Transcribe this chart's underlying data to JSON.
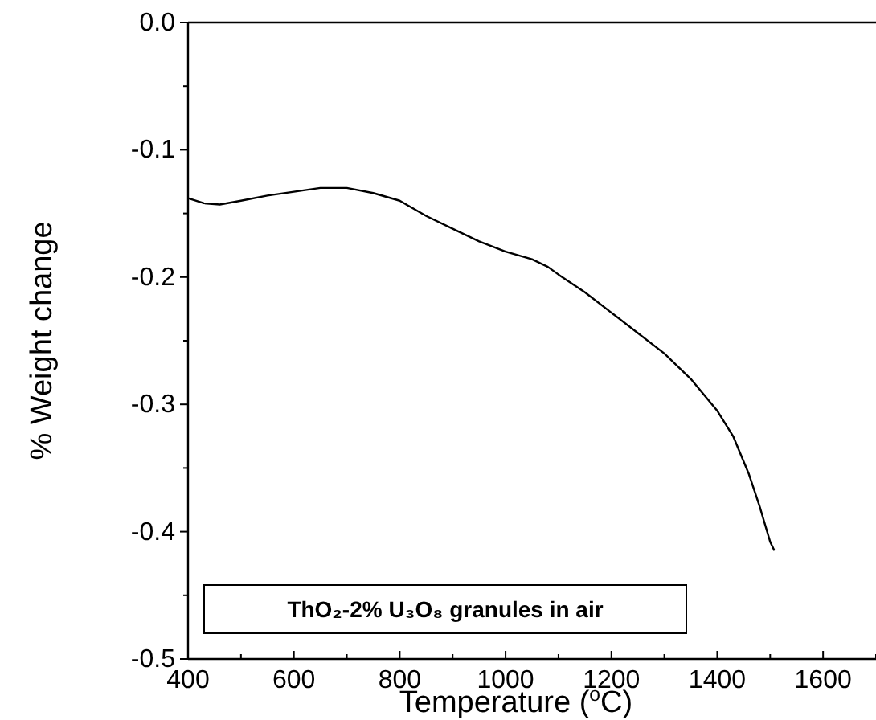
{
  "chart_data": {
    "type": "line",
    "xlabel": "Temperature ($^{o}$C)",
    "ylabel": "% Weight change",
    "x": [
      400,
      430,
      460,
      500,
      550,
      600,
      650,
      700,
      750,
      800,
      850,
      900,
      950,
      1000,
      1050,
      1080,
      1100,
      1150,
      1200,
      1250,
      1300,
      1350,
      1400,
      1430,
      1460,
      1480,
      1500,
      1508
    ],
    "series": [
      {
        "color": "#000000",
        "values": [
          -0.138,
          -0.142,
          -0.143,
          -0.14,
          -0.136,
          -0.133,
          -0.13,
          -0.13,
          -0.134,
          -0.14,
          -0.152,
          -0.162,
          -0.172,
          -0.18,
          -0.186,
          -0.192,
          -0.198,
          -0.212,
          -0.228,
          -0.244,
          -0.26,
          -0.28,
          -0.305,
          -0.325,
          -0.355,
          -0.38,
          -0.408,
          -0.415
        ]
      }
    ],
    "xlim": [
      400,
      1700
    ],
    "xticks": [
      400,
      {
        "value": 500,
        "label": null
      },
      600,
      {
        "value": 700,
        "label": null
      },
      800,
      {
        "value": 900,
        "label": null
      },
      1000,
      {
        "value": 1100,
        "label": null
      },
      1200,
      {
        "value": 1300,
        "label": null
      },
      1400,
      {
        "value": 1500,
        "label": null
      },
      1600,
      {
        "value": 1700,
        "label": null
      }
    ],
    "ylim": [
      -0.5,
      0
    ],
    "yticks": [
      {
        "value": 0,
        "label": "0.0"
      },
      {
        "value": -0.05,
        "label": null
      },
      -0.1,
      {
        "value": -0.15,
        "label": null
      },
      -0.2,
      {
        "value": -0.25,
        "label": null
      },
      -0.3,
      {
        "value": -0.35,
        "label": null
      },
      -0.4,
      {
        "value": -0.45,
        "label": null
      },
      -0.5
    ],
    "annotations": [
      "ThO₂-2% U₃O₈ granules in air"
    ],
    "grid": false,
    "marker": "none",
    "line_style": "solid"
  }
}
